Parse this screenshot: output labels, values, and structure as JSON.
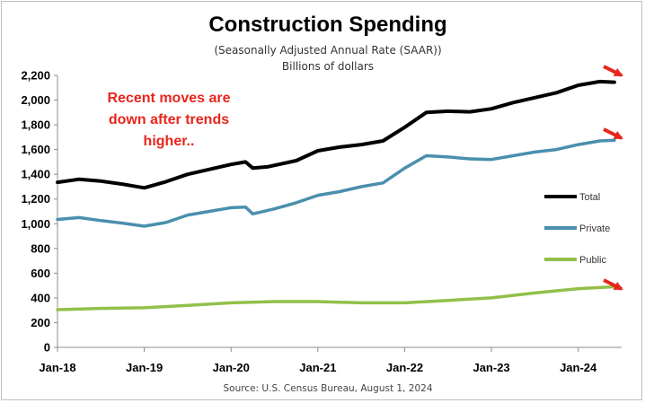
{
  "chart_data": {
    "type": "line",
    "title": "Construction Spending",
    "subtitle_lines": [
      "(Seasonally Adjusted Annual Rate (SAAR))",
      "Billions of dollars"
    ],
    "source": "Source: U.S. Census Bureau, August 1, 2024",
    "annotation_lines": [
      "Recent moves are",
      "down after trends",
      "higher.."
    ],
    "xlim": [
      "2018-01",
      "2024-07"
    ],
    "ylim": [
      0,
      2200
    ],
    "y_ticks": [
      0,
      200,
      400,
      600,
      800,
      1000,
      1200,
      1400,
      1600,
      1800,
      2000,
      2200
    ],
    "y_tick_labels": [
      "0",
      "200",
      "400",
      "600",
      "800",
      "1,000",
      "1,200",
      "1,400",
      "1,600",
      "1,800",
      "2,000",
      "2,200"
    ],
    "x_ticks": [
      "2018-01",
      "2019-01",
      "2020-01",
      "2021-01",
      "2022-01",
      "2023-01",
      "2024-01"
    ],
    "x_tick_labels": [
      "Jan-18",
      "Jan-19",
      "Jan-20",
      "Jan-21",
      "Jan-22",
      "Jan-23",
      "Jan-24"
    ],
    "grid": {
      "horizontal": false,
      "vertical": false
    },
    "legend": "right",
    "series": [
      {
        "name": "Total",
        "color": "#000000",
        "points": [
          [
            "2018-01",
            1335
          ],
          [
            "2018-04",
            1360
          ],
          [
            "2018-07",
            1345
          ],
          [
            "2018-10",
            1320
          ],
          [
            "2019-01",
            1290
          ],
          [
            "2019-04",
            1340
          ],
          [
            "2019-07",
            1400
          ],
          [
            "2019-10",
            1440
          ],
          [
            "2020-01",
            1480
          ],
          [
            "2020-03",
            1500
          ],
          [
            "2020-04",
            1450
          ],
          [
            "2020-06",
            1460
          ],
          [
            "2020-10",
            1510
          ],
          [
            "2021-01",
            1590
          ],
          [
            "2021-04",
            1620
          ],
          [
            "2021-07",
            1640
          ],
          [
            "2021-10",
            1670
          ],
          [
            "2022-01",
            1780
          ],
          [
            "2022-04",
            1900
          ],
          [
            "2022-07",
            1910
          ],
          [
            "2022-10",
            1905
          ],
          [
            "2023-01",
            1930
          ],
          [
            "2023-04",
            1980
          ],
          [
            "2023-07",
            2020
          ],
          [
            "2023-10",
            2060
          ],
          [
            "2024-01",
            2120
          ],
          [
            "2024-04",
            2150
          ],
          [
            "2024-06",
            2145
          ]
        ]
      },
      {
        "name": "Private",
        "color": "#4a8fad",
        "points": [
          [
            "2018-01",
            1035
          ],
          [
            "2018-04",
            1050
          ],
          [
            "2018-07",
            1025
          ],
          [
            "2018-10",
            1005
          ],
          [
            "2019-01",
            980
          ],
          [
            "2019-04",
            1010
          ],
          [
            "2019-07",
            1070
          ],
          [
            "2019-10",
            1100
          ],
          [
            "2020-01",
            1130
          ],
          [
            "2020-03",
            1135
          ],
          [
            "2020-04",
            1080
          ],
          [
            "2020-07",
            1120
          ],
          [
            "2020-10",
            1170
          ],
          [
            "2021-01",
            1230
          ],
          [
            "2021-04",
            1260
          ],
          [
            "2021-07",
            1300
          ],
          [
            "2021-10",
            1330
          ],
          [
            "2022-01",
            1450
          ],
          [
            "2022-04",
            1550
          ],
          [
            "2022-07",
            1540
          ],
          [
            "2022-10",
            1525
          ],
          [
            "2023-01",
            1520
          ],
          [
            "2023-04",
            1550
          ],
          [
            "2023-07",
            1580
          ],
          [
            "2023-10",
            1600
          ],
          [
            "2024-01",
            1640
          ],
          [
            "2024-04",
            1670
          ],
          [
            "2024-06",
            1675
          ]
        ]
      },
      {
        "name": "Public",
        "color": "#92c04a",
        "points": [
          [
            "2018-01",
            305
          ],
          [
            "2018-07",
            315
          ],
          [
            "2019-01",
            320
          ],
          [
            "2019-07",
            340
          ],
          [
            "2020-01",
            360
          ],
          [
            "2020-07",
            370
          ],
          [
            "2021-01",
            370
          ],
          [
            "2021-07",
            360
          ],
          [
            "2022-01",
            360
          ],
          [
            "2022-07",
            380
          ],
          [
            "2023-01",
            400
          ],
          [
            "2023-07",
            440
          ],
          [
            "2024-01",
            475
          ],
          [
            "2024-06",
            490
          ]
        ]
      }
    ]
  }
}
